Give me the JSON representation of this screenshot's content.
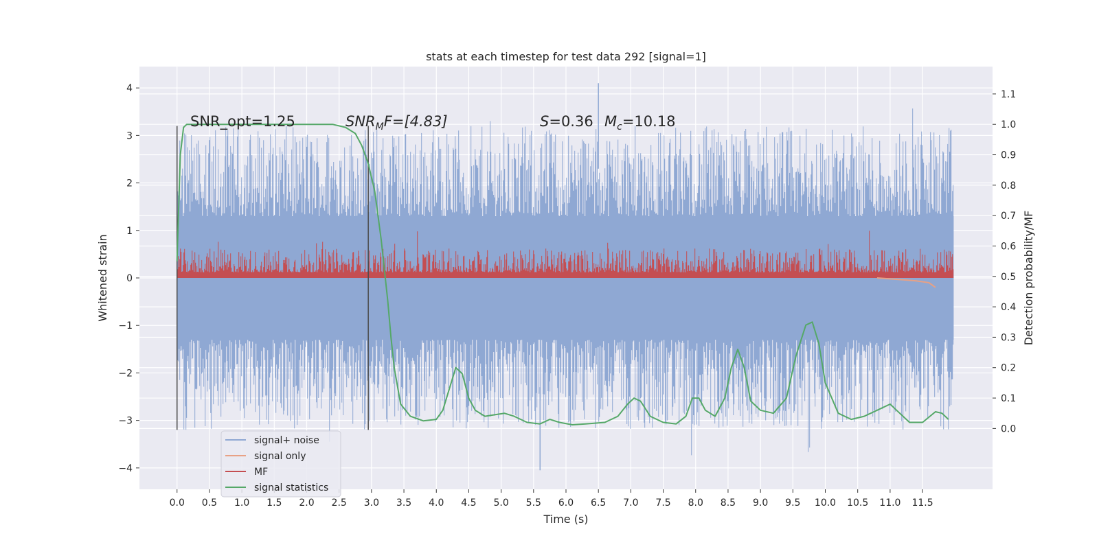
{
  "chart_data": {
    "type": "line",
    "title": "stats at each timestep for test data 292 [signal=1]",
    "xlabel": "Time (s)",
    "ylabel_left": "Whitened strain",
    "ylabel_right": "Detection probability/MF",
    "xlim": [
      -0.58,
      12.58
    ],
    "ylim_left": [
      -4.45,
      4.45
    ],
    "ylim_right": [
      -0.2,
      1.19
    ],
    "x_ticks": [
      "0.0",
      "0.5",
      "1.0",
      "1.5",
      "2.0",
      "2.5",
      "3.0",
      "3.5",
      "4.0",
      "4.5",
      "5.0",
      "5.5",
      "6.0",
      "6.5",
      "7.0",
      "7.5",
      "8.0",
      "8.5",
      "9.0",
      "9.5",
      "10.0",
      "10.5",
      "11.0",
      "11.5"
    ],
    "left_ticks": [
      "−4",
      "−3",
      "−2",
      "−1",
      "0",
      "1",
      "2",
      "3",
      "4"
    ],
    "right_ticks": [
      "0.0",
      "0.1",
      "0.2",
      "0.3",
      "0.4",
      "0.5",
      "0.6",
      "0.7",
      "0.8",
      "0.9",
      "1.0",
      "1.1"
    ],
    "grid": true,
    "legend_position": "lower-left",
    "legend": [
      "signal+ noise",
      "signal only",
      "MF",
      "signal statistics"
    ],
    "colors": {
      "signal_noise": "#8fa8d3",
      "signal_only": "#e8a185",
      "mf": "#c44e52",
      "signal_statistics": "#55a868",
      "plot_bg": "#eaeaf2",
      "vline": "#4a4a4a"
    },
    "annotations": [
      {
        "text": "SNR_opt=1.25"
      },
      {
        "text": "SNR",
        "math": "M",
        "suffix": "F=[4.83]"
      },
      {
        "text": "S",
        "suffix": "=0.36"
      },
      {
        "text": "M",
        "math": "c",
        "suffix": "=10.18"
      }
    ],
    "vertical_lines": [
      0.0,
      2.95
    ],
    "signal_noise_envelope": {
      "x_range": [
        0.0,
        11.98
      ],
      "dense_band_left": [
        -1.3,
        1.3
      ],
      "typical_peak_left": [
        -3.0,
        3.0
      ],
      "max_left": 4.1,
      "min_left": -4.05
    },
    "signal_only_series": {
      "x": [
        10.8,
        11.0,
        11.2,
        11.4,
        11.6,
        11.7
      ],
      "y_left": [
        0.0,
        -0.02,
        -0.04,
        -0.06,
        -0.1,
        -0.2
      ]
    },
    "mf_band": {
      "x_range": [
        0.0,
        11.98
      ],
      "baseline_left": 0.0,
      "typical_top_left": 0.5,
      "max_left": 1.0
    },
    "signal_statistics": {
      "x": [
        0.0,
        0.05,
        0.1,
        0.15,
        0.2,
        0.3,
        0.5,
        1.0,
        1.5,
        2.0,
        2.4,
        2.6,
        2.75,
        2.85,
        2.95,
        3.05,
        3.15,
        3.25,
        3.3,
        3.35,
        3.45,
        3.6,
        3.8,
        4.0,
        4.1,
        4.2,
        4.3,
        4.4,
        4.5,
        4.6,
        4.75,
        4.9,
        5.05,
        5.2,
        5.4,
        5.6,
        5.75,
        5.9,
        6.1,
        6.3,
        6.6,
        6.8,
        6.95,
        7.05,
        7.15,
        7.3,
        7.5,
        7.7,
        7.85,
        7.95,
        8.05,
        8.15,
        8.3,
        8.45,
        8.55,
        8.65,
        8.75,
        8.85,
        9.0,
        9.2,
        9.4,
        9.55,
        9.7,
        9.8,
        9.9,
        10.0,
        10.2,
        10.4,
        10.6,
        10.8,
        11.0,
        11.1,
        11.3,
        11.5,
        11.7,
        11.8,
        11.9
      ],
      "y_right": [
        0.55,
        0.9,
        0.99,
        1.0,
        1.0,
        1.0,
        1.0,
        1.0,
        1.0,
        1.0,
        1.0,
        0.99,
        0.97,
        0.93,
        0.87,
        0.78,
        0.62,
        0.42,
        0.3,
        0.2,
        0.08,
        0.04,
        0.025,
        0.03,
        0.06,
        0.13,
        0.2,
        0.18,
        0.1,
        0.06,
        0.04,
        0.045,
        0.05,
        0.04,
        0.02,
        0.015,
        0.03,
        0.02,
        0.012,
        0.015,
        0.02,
        0.04,
        0.08,
        0.1,
        0.09,
        0.04,
        0.02,
        0.015,
        0.04,
        0.1,
        0.1,
        0.06,
        0.04,
        0.1,
        0.2,
        0.26,
        0.2,
        0.09,
        0.06,
        0.05,
        0.1,
        0.24,
        0.34,
        0.35,
        0.28,
        0.15,
        0.05,
        0.03,
        0.04,
        0.06,
        0.08,
        0.06,
        0.02,
        0.02,
        0.055,
        0.05,
        0.03
      ]
    }
  }
}
